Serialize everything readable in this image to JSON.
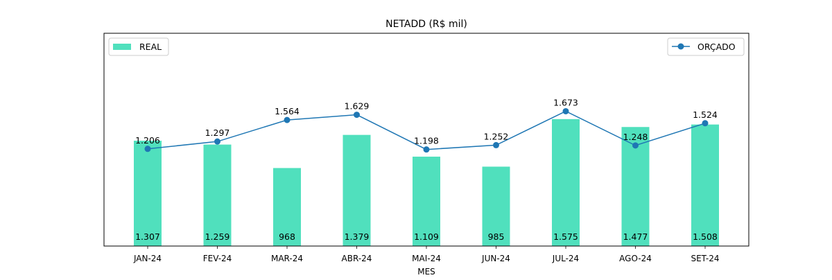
{
  "chart_data": {
    "type": "bar",
    "title": "NETADD (R$ mil)",
    "xlabel": "MES",
    "ylabel": "",
    "categories": [
      "JAN-24",
      "FEV-24",
      "MAR-24",
      "ABR-24",
      "MAI-24",
      "JUN-24",
      "JUL-24",
      "AGO-24",
      "SET-24"
    ],
    "bar_labels": [
      "1.307",
      "1.259",
      "968",
      "1.379",
      "1.109",
      "985",
      "1.575",
      "1.477",
      "1.508"
    ],
    "line_labels": [
      "1.206",
      "1.297",
      "1.564",
      "1.629",
      "1.198",
      "1.252",
      "1.673",
      "1.248",
      "1.524"
    ],
    "ylim": [
      0,
      2640
    ],
    "grid": false,
    "series": [
      {
        "name": "REAL",
        "type": "bar",
        "color": "#50e0bd",
        "values": [
          1307,
          1259,
          968,
          1379,
          1109,
          985,
          1575,
          1477,
          1508
        ],
        "legend_position": "upper-left"
      },
      {
        "name": "ORÇADO",
        "type": "line",
        "color": "#1f77b4",
        "marker": "circle",
        "values": [
          1206,
          1297,
          1564,
          1629,
          1198,
          1252,
          1673,
          1248,
          1524
        ],
        "legend_position": "upper-right"
      }
    ]
  }
}
